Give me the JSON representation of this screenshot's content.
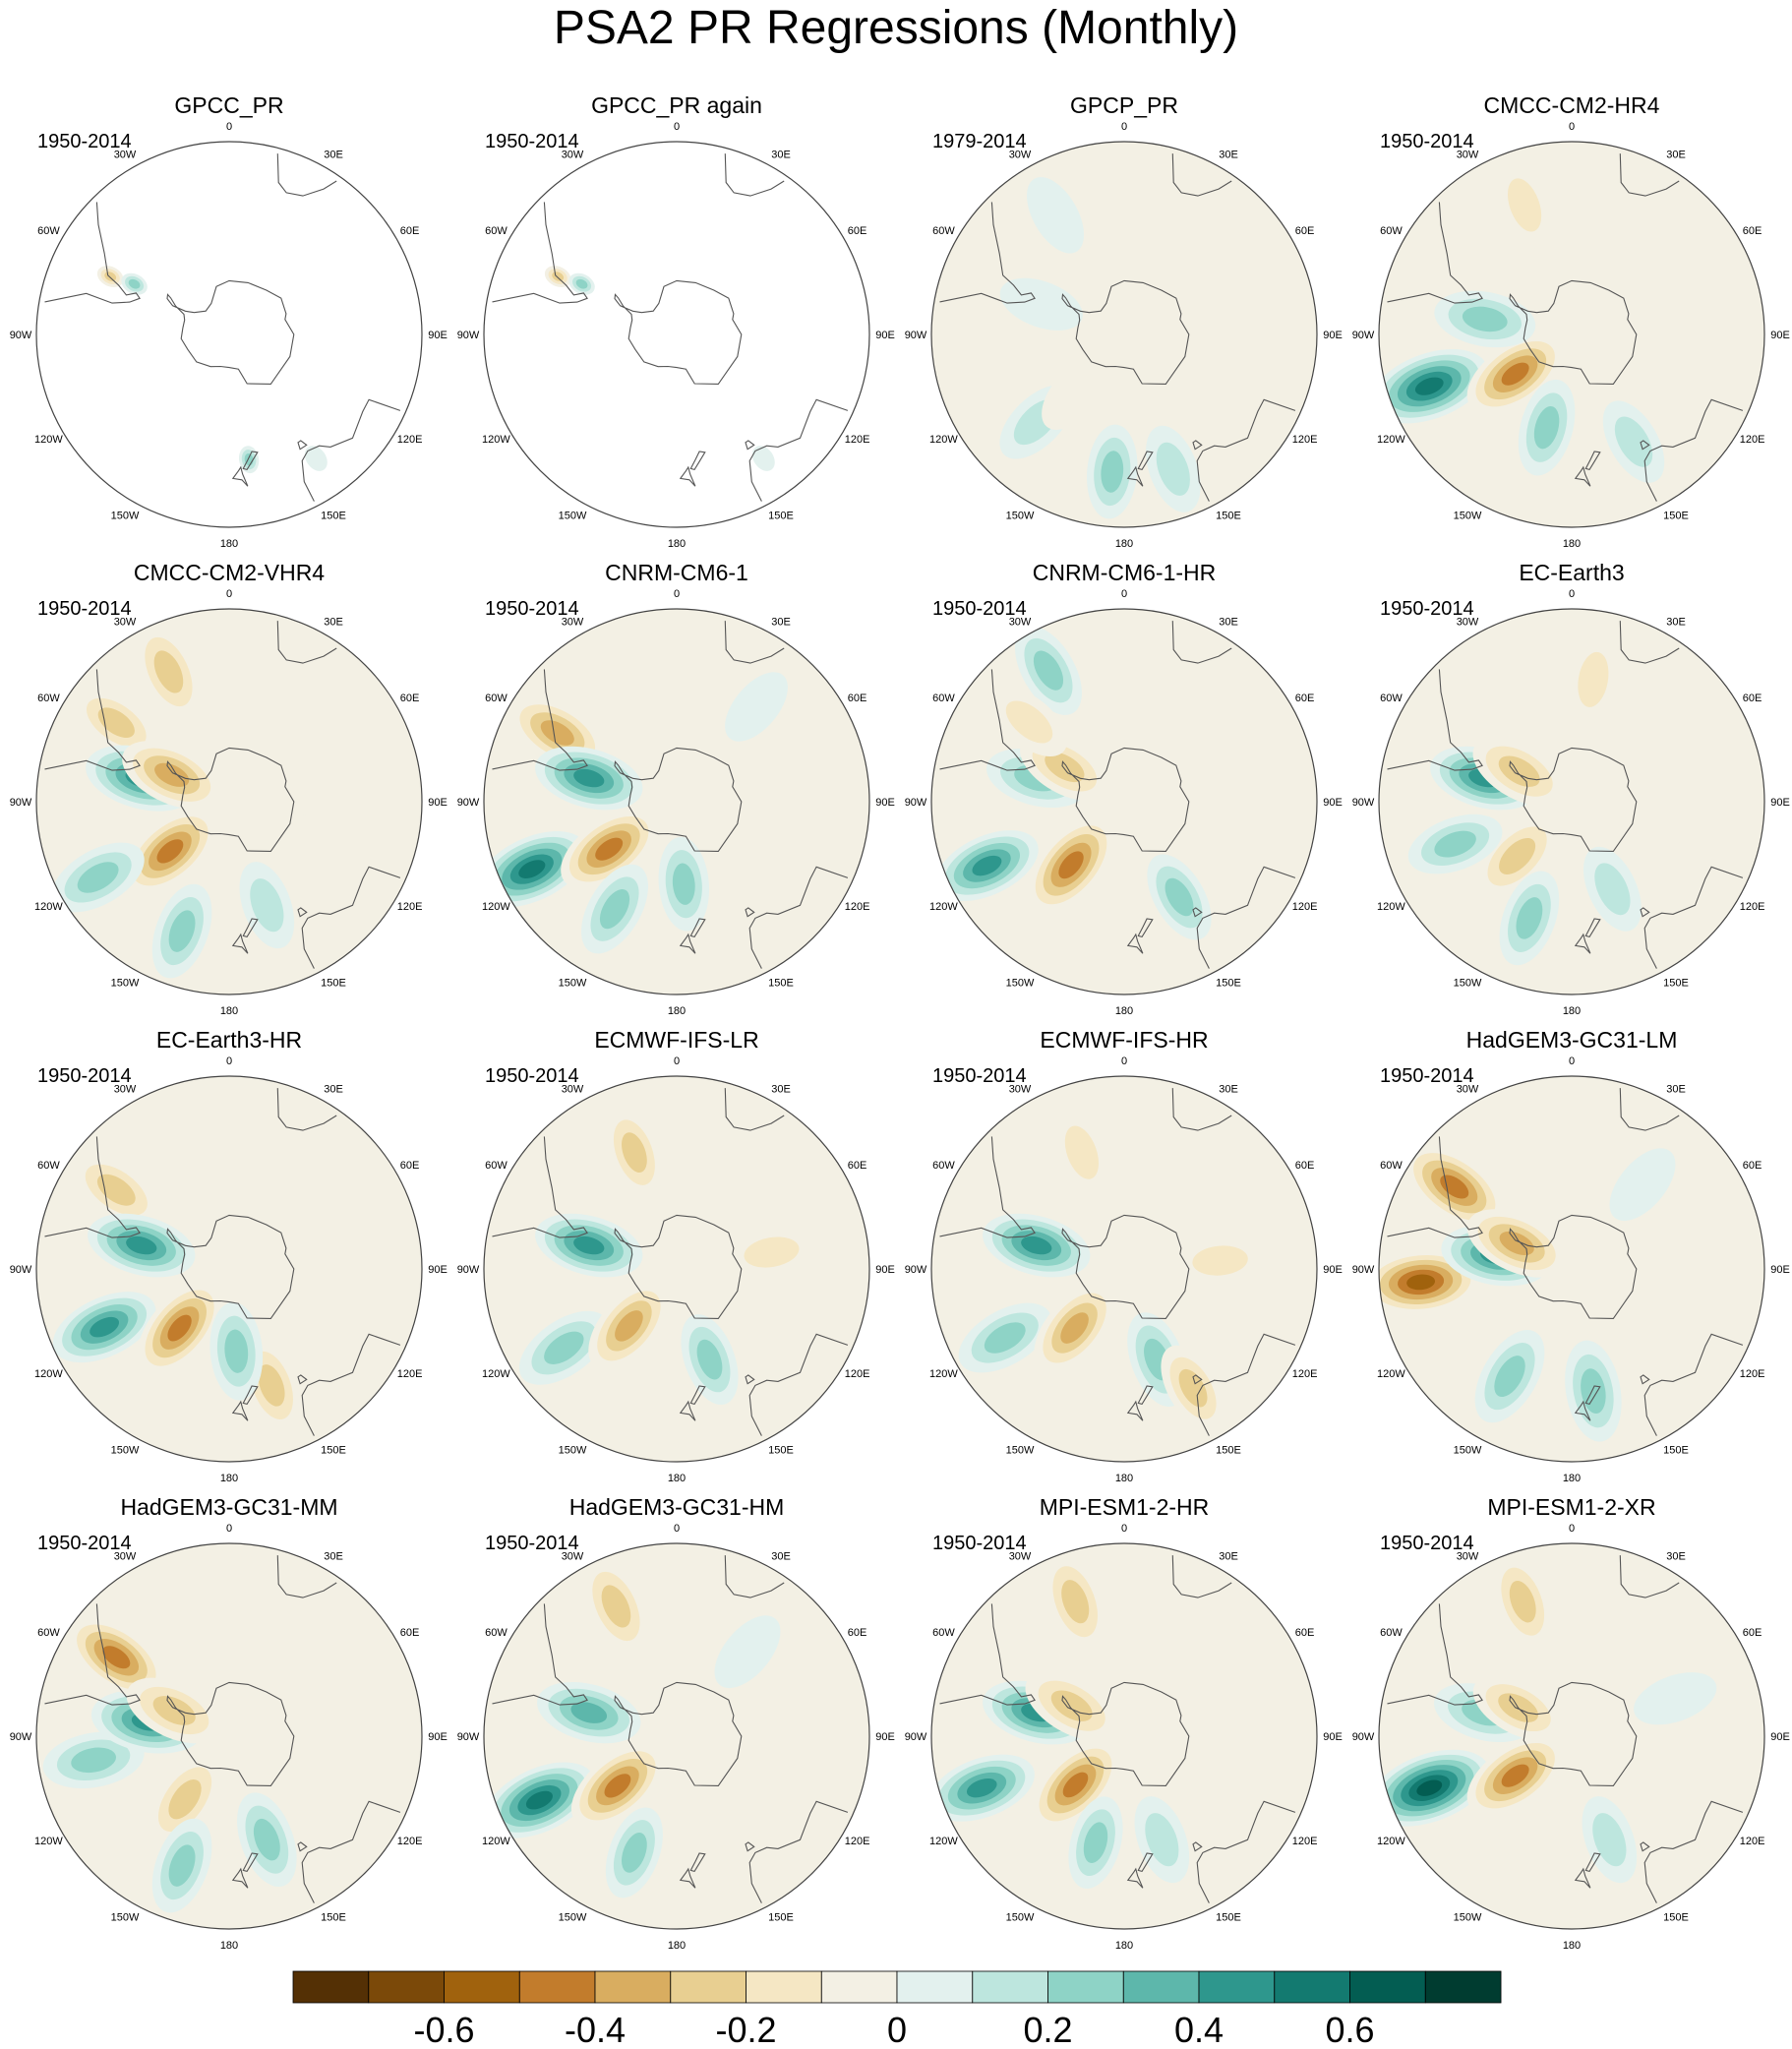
{
  "chart_data": {
    "type": "polar-contour-map-panels",
    "title": "PSA2 PR Regressions (Monthly)",
    "projection": "south-polar-stereographic",
    "longitude_labels": [
      "0",
      "30E",
      "60E",
      "90E",
      "120E",
      "150E",
      "180",
      "150W",
      "120W",
      "90W",
      "60W",
      "30W"
    ],
    "panels": [
      {
        "title": "GPCC_PR",
        "period": "1950-2014",
        "coverage": "land-only",
        "anomalies": [
          {
            "lon": -64,
            "lat": -42,
            "value": -0.35
          },
          {
            "lon": -62,
            "lat": -51,
            "value": 0.3
          },
          {
            "lon": 171,
            "lat": -44,
            "value": 0.35
          },
          {
            "lon": 145,
            "lat": -35,
            "value": 0.15
          }
        ]
      },
      {
        "title": "GPCC_PR again",
        "period": "1950-2014",
        "coverage": "land-only",
        "anomalies": [
          {
            "lon": -64,
            "lat": -42,
            "value": -0.35
          },
          {
            "lon": -62,
            "lat": -51,
            "value": 0.25
          },
          {
            "lon": 145,
            "lat": -35,
            "value": 0.15
          }
        ]
      },
      {
        "title": "GPCP_PR",
        "period": "1979-2014",
        "anomalies": [
          {
            "lon": -175,
            "lat": -40,
            "value": 0.25
          },
          {
            "lon": -135,
            "lat": -45,
            "value": 0.22
          },
          {
            "lon": 160,
            "lat": -38,
            "value": 0.2
          },
          {
            "lon": -140,
            "lat": -62,
            "value": -0.15
          },
          {
            "lon": -60,
            "lat": -40,
            "value": -0.15
          },
          {
            "lon": -30,
            "lat": -40,
            "value": 0.12
          },
          {
            "lon": -70,
            "lat": -58,
            "value": 0.15
          },
          {
            "lon": 0,
            "lat": -45,
            "value": -0.1
          }
        ]
      },
      {
        "title": "CMCC-CM2-HR4",
        "period": "1950-2014",
        "anomalies": [
          {
            "lon": -110,
            "lat": -35,
            "value": 0.6
          },
          {
            "lon": -125,
            "lat": -65,
            "value": -0.45
          },
          {
            "lon": -165,
            "lat": -55,
            "value": 0.3
          },
          {
            "lon": -80,
            "lat": -58,
            "value": 0.35
          },
          {
            "lon": -20,
            "lat": -40,
            "value": -0.2
          },
          {
            "lon": 60,
            "lat": -50,
            "value": -0.1
          },
          {
            "lon": 150,
            "lat": -45,
            "value": 0.2
          }
        ]
      },
      {
        "title": "CMCC-CM2-VHR4",
        "period": "1950-2014",
        "anomalies": [
          {
            "lon": -25,
            "lat": -38,
            "value": -0.35
          },
          {
            "lon": -55,
            "lat": -40,
            "value": -0.25
          },
          {
            "lon": -130,
            "lat": -62,
            "value": -0.45
          },
          {
            "lon": -120,
            "lat": -35,
            "value": 0.35
          },
          {
            "lon": -160,
            "lat": -40,
            "value": 0.3
          },
          {
            "lon": -75,
            "lat": -57,
            "value": 0.5
          },
          {
            "lon": -65,
            "lat": -67,
            "value": -0.4
          },
          {
            "lon": 85,
            "lat": -55,
            "value": -0.15
          },
          {
            "lon": 160,
            "lat": -50,
            "value": 0.2
          }
        ]
      },
      {
        "title": "CNRM-CM6-1",
        "period": "1950-2014",
        "anomalies": [
          {
            "lon": -115,
            "lat": -32,
            "value": 0.55
          },
          {
            "lon": -125,
            "lat": -60,
            "value": -0.45
          },
          {
            "lon": -60,
            "lat": -40,
            "value": -0.4
          },
          {
            "lon": -75,
            "lat": -57,
            "value": 0.45
          },
          {
            "lon": -150,
            "lat": -45,
            "value": 0.3
          },
          {
            "lon": 175,
            "lat": -60,
            "value": 0.25
          },
          {
            "lon": 40,
            "lat": -45,
            "value": 0.1
          }
        ]
      },
      {
        "title": "CNRM-CM6-1-HR",
        "period": "1950-2014",
        "anomalies": [
          {
            "lon": -115,
            "lat": -35,
            "value": 0.45
          },
          {
            "lon": -140,
            "lat": -60,
            "value": -0.5
          },
          {
            "lon": -75,
            "lat": -57,
            "value": 0.35
          },
          {
            "lon": -60,
            "lat": -65,
            "value": -0.3
          },
          {
            "lon": -30,
            "lat": -35,
            "value": 0.3
          },
          {
            "lon": 150,
            "lat": -50,
            "value": 0.25
          },
          {
            "lon": -50,
            "lat": -45,
            "value": -0.2
          }
        ]
      },
      {
        "title": "EC-Earth3",
        "period": "1950-2014",
        "anomalies": [
          {
            "lon": -135,
            "lat": -62,
            "value": -0.35
          },
          {
            "lon": -110,
            "lat": -45,
            "value": 0.3
          },
          {
            "lon": -160,
            "lat": -45,
            "value": 0.3
          },
          {
            "lon": -75,
            "lat": -57,
            "value": 0.45
          },
          {
            "lon": -60,
            "lat": -68,
            "value": -0.35
          },
          {
            "lon": 10,
            "lat": -45,
            "value": -0.2
          },
          {
            "lon": 155,
            "lat": -55,
            "value": 0.2
          },
          {
            "lon": 80,
            "lat": -55,
            "value": -0.15
          }
        ]
      },
      {
        "title": "EC-Earth3-HR",
        "period": "1950-2014",
        "anomalies": [
          {
            "lon": -115,
            "lat": -40,
            "value": 0.45
          },
          {
            "lon": -140,
            "lat": -62,
            "value": -0.45
          },
          {
            "lon": -55,
            "lat": -40,
            "value": -0.3
          },
          {
            "lon": -75,
            "lat": -57,
            "value": 0.45
          },
          {
            "lon": 160,
            "lat": -45,
            "value": -0.3
          },
          {
            "lon": 175,
            "lat": -60,
            "value": 0.3
          },
          {
            "lon": 70,
            "lat": -55,
            "value": -0.15
          }
        ]
      },
      {
        "title": "ECMWF-IFS-LR",
        "period": "1950-2014",
        "anomalies": [
          {
            "lon": -125,
            "lat": -40,
            "value": 0.35
          },
          {
            "lon": -140,
            "lat": -63,
            "value": -0.4
          },
          {
            "lon": -75,
            "lat": -57,
            "value": 0.45
          },
          {
            "lon": -20,
            "lat": -45,
            "value": -0.25
          },
          {
            "lon": 160,
            "lat": -55,
            "value": 0.25
          },
          {
            "lon": 80,
            "lat": -55,
            "value": -0.2
          }
        ]
      },
      {
        "title": "ECMWF-IFS-HR",
        "period": "1950-2014",
        "anomalies": [
          {
            "lon": -120,
            "lat": -40,
            "value": 0.35
          },
          {
            "lon": -140,
            "lat": -62,
            "value": -0.4
          },
          {
            "lon": -75,
            "lat": -57,
            "value": 0.45
          },
          {
            "lon": -20,
            "lat": -45,
            "value": -0.2
          },
          {
            "lon": 160,
            "lat": -55,
            "value": 0.3
          },
          {
            "lon": 85,
            "lat": -55,
            "value": -0.2
          },
          {
            "lon": 150,
            "lat": -40,
            "value": -0.25
          }
        ]
      },
      {
        "title": "HadGEM3-GC31-LM",
        "period": "1950-2014",
        "anomalies": [
          {
            "lon": -95,
            "lat": -35,
            "value": -0.55
          },
          {
            "lon": -80,
            "lat": -62,
            "value": 0.45
          },
          {
            "lon": -55,
            "lat": -38,
            "value": -0.5
          },
          {
            "lon": -65,
            "lat": -68,
            "value": -0.4
          },
          {
            "lon": -150,
            "lat": -45,
            "value": 0.35
          },
          {
            "lon": 170,
            "lat": -45,
            "value": 0.35
          },
          {
            "lon": 40,
            "lat": -50,
            "value": 0.15
          }
        ]
      },
      {
        "title": "HadGEM3-GC31-MM",
        "period": "1950-2014",
        "anomalies": [
          {
            "lon": -100,
            "lat": -40,
            "value": 0.35
          },
          {
            "lon": -80,
            "lat": -60,
            "value": 0.5
          },
          {
            "lon": -55,
            "lat": -40,
            "value": -0.45
          },
          {
            "lon": -65,
            "lat": -68,
            "value": -0.35
          },
          {
            "lon": -145,
            "lat": -62,
            "value": -0.35
          },
          {
            "lon": -160,
            "lat": -40,
            "value": 0.3
          },
          {
            "lon": 160,
            "lat": -50,
            "value": 0.3
          }
        ]
      },
      {
        "title": "HadGEM3-GC31-HM",
        "period": "1950-2014",
        "anomalies": [
          {
            "lon": -115,
            "lat": -35,
            "value": 0.55
          },
          {
            "lon": -130,
            "lat": -62,
            "value": -0.45
          },
          {
            "lon": -25,
            "lat": -38,
            "value": -0.35
          },
          {
            "lon": -75,
            "lat": -57,
            "value": 0.4
          },
          {
            "lon": -160,
            "lat": -45,
            "value": 0.25
          },
          {
            "lon": 40,
            "lat": -50,
            "value": 0.15
          },
          {
            "lon": 175,
            "lat": -40,
            "value": -0.15
          }
        ]
      },
      {
        "title": "MPI-ESM1-2-HR",
        "period": "1950-2014",
        "anomalies": [
          {
            "lon": -110,
            "lat": -35,
            "value": 0.45
          },
          {
            "lon": -135,
            "lat": -65,
            "value": -0.45
          },
          {
            "lon": -20,
            "lat": -38,
            "value": -0.35
          },
          {
            "lon": -75,
            "lat": -57,
            "value": 0.45
          },
          {
            "lon": -60,
            "lat": -68,
            "value": -0.35
          },
          {
            "lon": -165,
            "lat": -50,
            "value": 0.25
          },
          {
            "lon": 160,
            "lat": -50,
            "value": 0.2
          }
        ]
      },
      {
        "title": "MPI-ESM1-2-XR",
        "period": "1950-2014",
        "anomalies": [
          {
            "lon": -110,
            "lat": -35,
            "value": 0.65
          },
          {
            "lon": -125,
            "lat": -65,
            "value": -0.45
          },
          {
            "lon": -20,
            "lat": -38,
            "value": -0.3
          },
          {
            "lon": -75,
            "lat": -57,
            "value": 0.35
          },
          {
            "lon": -62,
            "lat": -68,
            "value": -0.3
          },
          {
            "lon": 160,
            "lat": -50,
            "value": 0.2
          },
          {
            "lon": 70,
            "lat": -50,
            "value": 0.15
          }
        ]
      }
    ],
    "colorbar": {
      "levels": [
        -0.7,
        -0.6,
        -0.5,
        -0.4,
        -0.3,
        -0.2,
        -0.1,
        0,
        0.1,
        0.2,
        0.3,
        0.4,
        0.5,
        0.6,
        0.7
      ],
      "colors": [
        "#543005",
        "#7b4909",
        "#a0620d",
        "#c27c2c",
        "#d9ad60",
        "#e8cf91",
        "#f5e7c4",
        "#f3f0e4",
        "#e3f1ee",
        "#bde6de",
        "#8ed3c6",
        "#5db7ab",
        "#2e978d",
        "#137a70",
        "#035d52",
        "#003c30"
      ],
      "tick_labels": [
        "-0.6",
        "-0.4",
        "-0.2",
        "0",
        "0.2",
        "0.4",
        "0.6"
      ]
    }
  }
}
